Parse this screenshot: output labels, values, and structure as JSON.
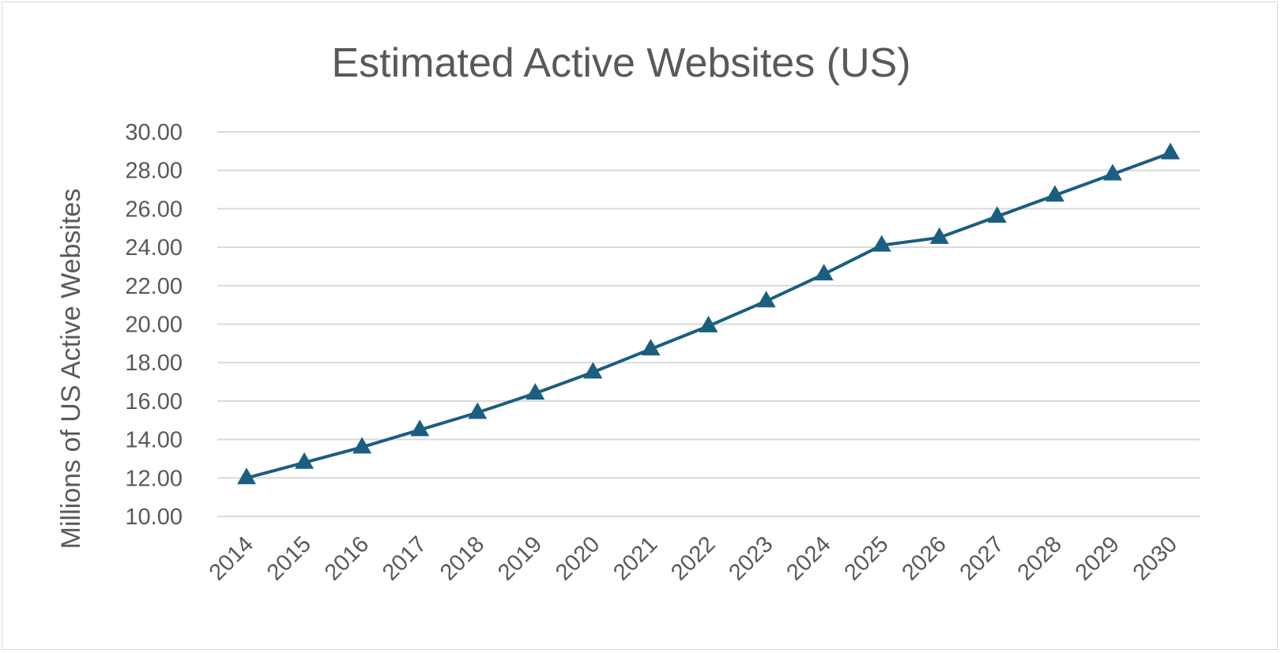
{
  "chart_data": {
    "type": "line",
    "title": "Estimated Active Websites (US)",
    "xlabel": "",
    "ylabel": "Millions of US Active Websites",
    "categories": [
      "2014",
      "2015",
      "2016",
      "2017",
      "2018",
      "2019",
      "2020",
      "2021",
      "2022",
      "2023",
      "2024",
      "2025",
      "2026",
      "2027",
      "2028",
      "2029",
      "2030"
    ],
    "series": [
      {
        "values": [
          12.0,
          12.8,
          13.6,
          14.5,
          15.4,
          16.4,
          17.5,
          18.7,
          19.9,
          21.2,
          22.6,
          24.1,
          24.5,
          25.6,
          26.7,
          27.8,
          28.9
        ],
        "color": "#1a5e80",
        "marker": "triangle"
      }
    ],
    "ylim": [
      10,
      30
    ],
    "yticks": [
      "10.00",
      "12.00",
      "14.00",
      "16.00",
      "18.00",
      "20.00",
      "22.00",
      "24.00",
      "26.00",
      "28.00",
      "30.00"
    ],
    "grid": true,
    "legend": "none"
  }
}
